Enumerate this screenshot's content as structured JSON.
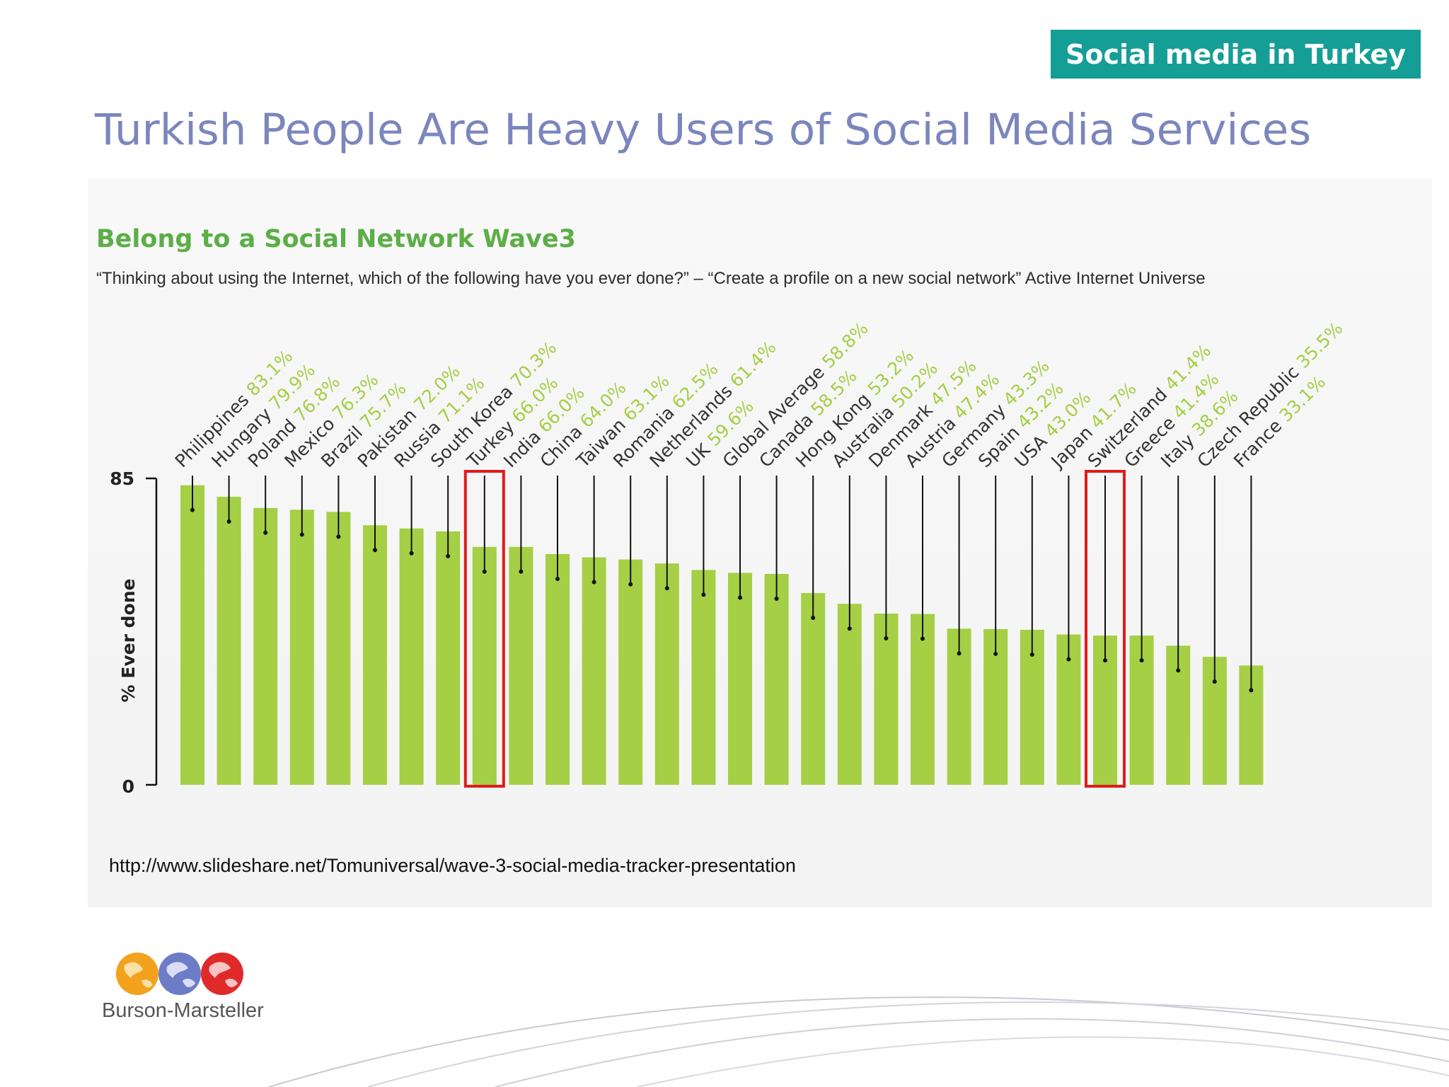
{
  "slide": {
    "tag": "Social media in Turkey",
    "title": "Turkish People Are Heavy Users of Social Media Services",
    "source_url": "http://www.slideshare.net/Tomuniversal/wave-3-social-media-tracker-presentation",
    "logo_text": "Burson-Marsteller"
  },
  "chart_data": {
    "type": "bar",
    "title": "Belong to a Social Network Wave3",
    "subtitle": "“Thinking about using the Internet, which of the following have you ever done?” – “Create a profile on a new social network” Active Internet Universe",
    "ylabel": "% Ever done",
    "xlabel": "",
    "ylim": [
      0,
      85
    ],
    "ytick_labels": [
      "0",
      "85"
    ],
    "categories": [
      "Philippines",
      "Hungary",
      "Poland",
      "Mexico",
      "Brazil",
      "Pakistan",
      "Russia",
      "South Korea",
      "Turkey",
      "India",
      "China",
      "Taiwan",
      "Romania",
      "Netherlands",
      "UK",
      "Global Average",
      "Canada",
      "Hong Kong",
      "Australia",
      "Denmark",
      "Austria",
      "Germany",
      "Spain",
      "USA",
      "Japan",
      "Switzerland",
      "Greece",
      "Italy",
      "Czech Republic",
      "France"
    ],
    "values": [
      83.1,
      79.9,
      76.8,
      76.3,
      75.7,
      72.0,
      71.1,
      70.3,
      66.0,
      66.0,
      64.0,
      63.1,
      62.5,
      61.4,
      59.6,
      58.8,
      58.5,
      53.2,
      50.2,
      47.5,
      47.4,
      43.3,
      43.2,
      43.0,
      41.7,
      41.4,
      41.4,
      38.6,
      35.5,
      33.1
    ],
    "value_labels": [
      "83.1%",
      "79.9%",
      "76.8%",
      "76.3%",
      "75.7%",
      "72.0%",
      "71.1%",
      "70.3%",
      "66.0%",
      "66.0%",
      "64.0%",
      "63.1%",
      "62.5%",
      "61.4%",
      "59.6%",
      "58.8%",
      "58.5%",
      "53.2%",
      "50.2%",
      "47.5%",
      "47.4%",
      "43.3%",
      "43.2%",
      "43.0%",
      "41.7%",
      "41.4%",
      "41.4%",
      "38.6%",
      "35.5%",
      "33.1%"
    ],
    "highlighted": [
      "Turkey",
      "Switzerland"
    ],
    "grid": false,
    "colors": {
      "bar": "#a5cf45",
      "label_value": "#a5cf45",
      "label_name": "#333333",
      "leader": "#111111",
      "highlight": "#e11b1b"
    }
  }
}
